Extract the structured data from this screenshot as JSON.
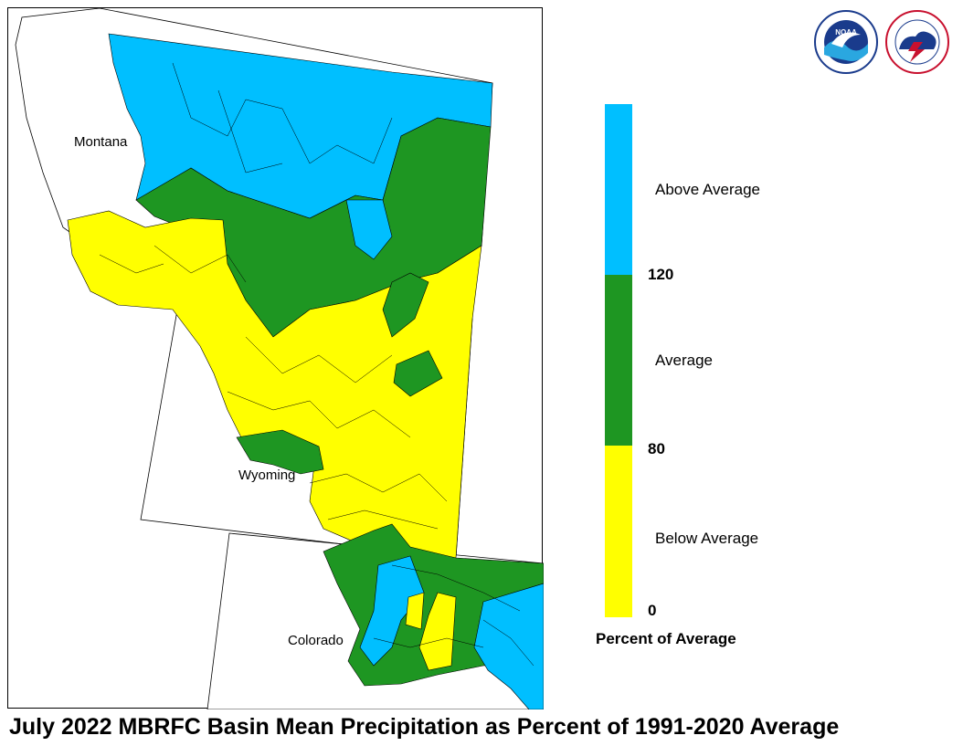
{
  "title": "July 2022 MBRFC Basin Mean Precipitation as Percent of 1991-2020 Average",
  "states": [
    {
      "name": "Montana"
    },
    {
      "name": "Wyoming"
    },
    {
      "name": "Colorado"
    }
  ],
  "legend": {
    "title": "Percent of Average",
    "categories": [
      {
        "label": "Above Average",
        "color": "#00bfff"
      },
      {
        "label": "Average",
        "color": "#1e9622"
      },
      {
        "label": "Below Average",
        "color": "#ffff00"
      }
    ],
    "ticks": [
      "120",
      "80",
      "0"
    ]
  },
  "logos": [
    {
      "name": "NOAA",
      "text": "NOAA",
      "icon": "noaa-logo"
    },
    {
      "name": "National Weather Service",
      "text": "NATIONAL WEATHER SERVICE",
      "icon": "nws-logo"
    }
  ],
  "colors": {
    "above": "#00bfff",
    "average": "#1e9622",
    "below": "#ffff00",
    "outline": "#000000"
  }
}
